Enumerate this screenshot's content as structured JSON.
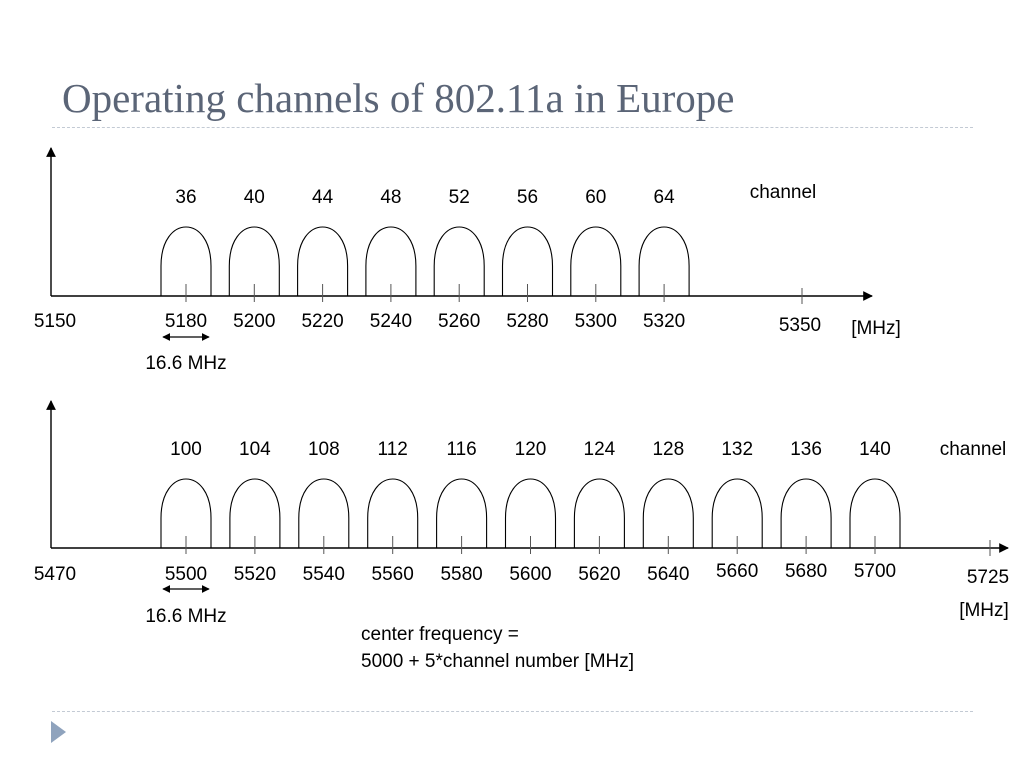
{
  "title": "Operating channels of 802.11a in Europe",
  "band_low": {
    "channels": [
      "36",
      "40",
      "44",
      "48",
      "52",
      "56",
      "60",
      "64"
    ],
    "center_labels": [
      "5180",
      "5200",
      "5220",
      "5240",
      "5260",
      "5280",
      "5300",
      "5320"
    ],
    "band_start": "5150",
    "band_end": "5350",
    "unit": "[MHz]",
    "channel_label": "channel",
    "bandwidth": "16.6 MHz"
  },
  "band_high": {
    "channels": [
      "100",
      "104",
      "108",
      "112",
      "116",
      "120",
      "124",
      "128",
      "132",
      "136",
      "140"
    ],
    "center_labels": [
      "5500",
      "5520",
      "5540",
      "5560",
      "5580",
      "5600",
      "5620",
      "5640",
      "5660",
      "5680",
      "5700"
    ],
    "band_start": "5470",
    "band_end": "5725",
    "unit": "[MHz]",
    "channel_label": "channel",
    "bandwidth": "16.6 MHz"
  },
  "formula": {
    "line1": "center frequency =",
    "line2": "5000 + 5*channel number [MHz]"
  },
  "colors": {
    "title": "#5b6577",
    "rule": "#c3cad4",
    "nav_arrow": "#8fa3bd",
    "lines": "#000000"
  }
}
